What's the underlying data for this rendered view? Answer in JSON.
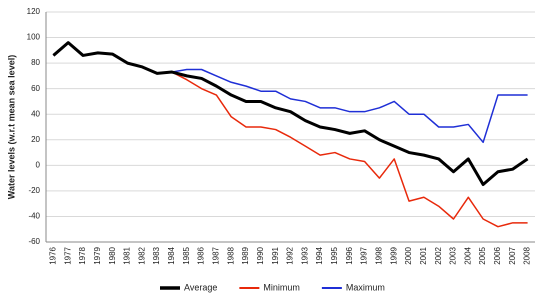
{
  "chart_data": {
    "type": "line",
    "y_label": "Water levels (w.r.t mean sea level)",
    "categories": [
      "1976",
      "1977",
      "1978",
      "1979",
      "1980",
      "1981",
      "1982",
      "1983",
      "1984",
      "1985",
      "1986",
      "1987",
      "1988",
      "1989",
      "1990",
      "1991",
      "1992",
      "1993",
      "1994",
      "1995",
      "1996",
      "1997",
      "1998",
      "1999",
      "2000",
      "2001",
      "2002",
      "2003",
      "2004",
      "2005",
      "2006",
      "2007",
      "2008"
    ],
    "series": [
      {
        "name": "Average",
        "color": "#000000",
        "width": 3,
        "values": [
          86,
          96,
          86,
          88,
          87,
          80,
          77,
          72,
          73,
          70,
          68,
          62,
          55,
          50,
          50,
          45,
          42,
          35,
          30,
          28,
          25,
          27,
          20,
          15,
          10,
          8,
          5,
          -5,
          5,
          -15,
          -5,
          -3,
          5
        ]
      },
      {
        "name": "Minimum",
        "color": "#e8290b",
        "width": 1.5,
        "values": [
          86,
          96,
          86,
          88,
          87,
          80,
          77,
          72,
          73,
          67,
          60,
          55,
          38,
          30,
          30,
          28,
          22,
          15,
          8,
          10,
          5,
          3,
          -10,
          5,
          -28,
          -25,
          -32,
          -42,
          -25,
          -42,
          -48,
          -45,
          -45
        ]
      },
      {
        "name": "Maximum",
        "color": "#1f2fd6",
        "width": 1.5,
        "values": [
          86,
          96,
          86,
          88,
          87,
          80,
          77,
          72,
          73,
          75,
          75,
          70,
          65,
          62,
          58,
          58,
          52,
          50,
          45,
          45,
          42,
          42,
          45,
          50,
          40,
          40,
          30,
          30,
          32,
          18,
          55,
          55,
          55
        ]
      }
    ],
    "ylim": [
      -60,
      120
    ],
    "yticks": [
      -60,
      -40,
      -20,
      0,
      20,
      40,
      60,
      80,
      100,
      120
    ],
    "grid": true
  }
}
